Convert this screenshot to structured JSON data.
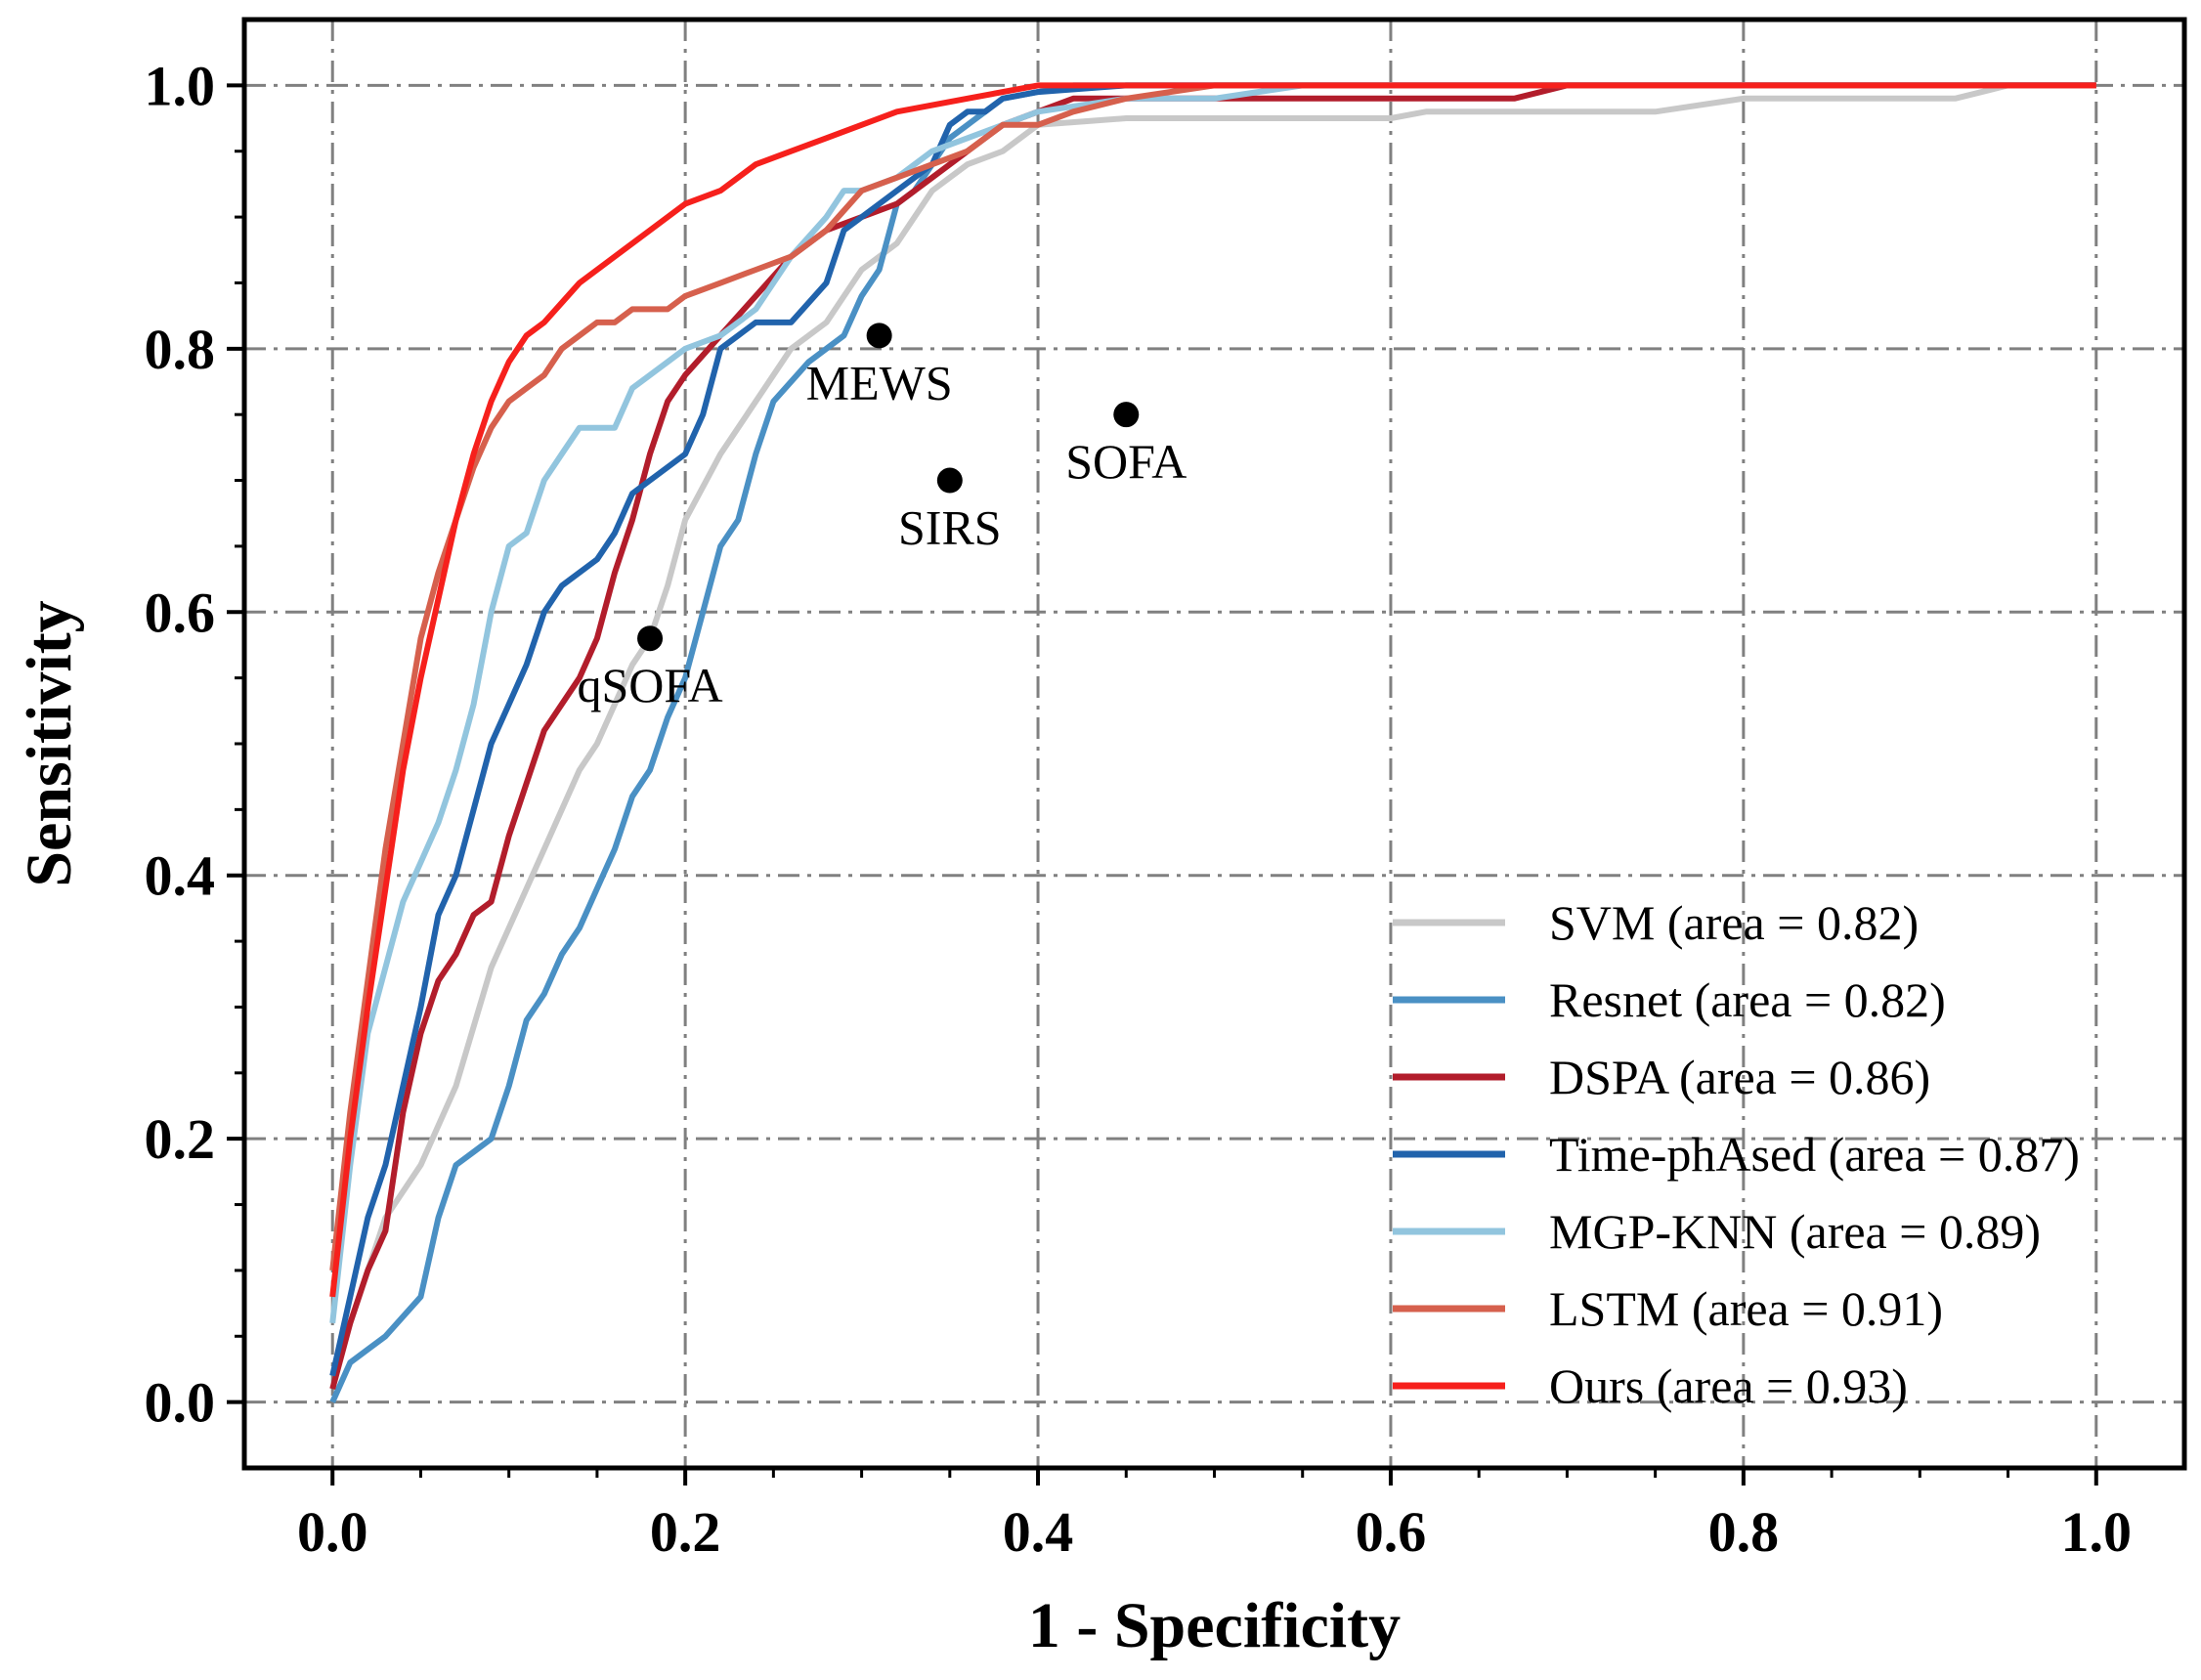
{
  "chart_data": {
    "type": "line",
    "xlabel": "1 - Specificity",
    "ylabel": "Sensitivity",
    "xlim": [
      -0.05,
      1.05
    ],
    "ylim": [
      -0.05,
      1.05
    ],
    "xticks": [
      "0.0",
      "0.2",
      "0.4",
      "0.6",
      "0.8",
      "1.0"
    ],
    "yticks": [
      "0.0",
      "0.2",
      "0.4",
      "0.6",
      "0.8",
      "1.0"
    ],
    "grid": true,
    "legend_position": "lower-right",
    "series": [
      {
        "name": "SVM (area = 0.82)",
        "color": "#c8c8c8",
        "x": [
          0,
          0.01,
          0.02,
          0.03,
          0.05,
          0.07,
          0.09,
          0.12,
          0.14,
          0.15,
          0.16,
          0.17,
          0.18,
          0.19,
          0.2,
          0.22,
          0.24,
          0.26,
          0.28,
          0.3,
          0.32,
          0.34,
          0.36,
          0.38,
          0.4,
          0.45,
          0.6,
          0.62,
          0.75,
          0.8,
          0.92,
          0.95,
          1.0
        ],
        "y": [
          0.02,
          0.06,
          0.1,
          0.14,
          0.18,
          0.24,
          0.33,
          0.42,
          0.48,
          0.5,
          0.53,
          0.56,
          0.58,
          0.62,
          0.67,
          0.72,
          0.76,
          0.8,
          0.82,
          0.86,
          0.88,
          0.92,
          0.94,
          0.95,
          0.97,
          0.975,
          0.975,
          0.98,
          0.98,
          0.99,
          0.99,
          1.0,
          1.0
        ]
      },
      {
        "name": "Resnet (area = 0.82)",
        "color": "#4a90c4",
        "x": [
          0,
          0.01,
          0.03,
          0.05,
          0.06,
          0.07,
          0.08,
          0.09,
          0.1,
          0.11,
          0.12,
          0.13,
          0.14,
          0.15,
          0.16,
          0.17,
          0.18,
          0.19,
          0.2,
          0.21,
          0.22,
          0.23,
          0.24,
          0.25,
          0.27,
          0.29,
          0.3,
          0.31,
          0.32,
          0.33,
          0.34,
          0.35,
          0.36,
          0.37,
          0.38,
          0.4,
          0.42,
          1.0
        ],
        "y": [
          0.0,
          0.03,
          0.05,
          0.08,
          0.14,
          0.18,
          0.19,
          0.2,
          0.24,
          0.29,
          0.31,
          0.34,
          0.36,
          0.39,
          0.42,
          0.46,
          0.48,
          0.52,
          0.55,
          0.6,
          0.65,
          0.67,
          0.72,
          0.76,
          0.79,
          0.81,
          0.84,
          0.86,
          0.91,
          0.92,
          0.94,
          0.96,
          0.97,
          0.98,
          0.99,
          0.995,
          1.0,
          1.0
        ]
      },
      {
        "name": "DSPA (area = 0.86)",
        "color": "#b21d2b",
        "x": [
          0,
          0.01,
          0.02,
          0.03,
          0.04,
          0.05,
          0.06,
          0.07,
          0.08,
          0.09,
          0.1,
          0.11,
          0.12,
          0.13,
          0.14,
          0.15,
          0.16,
          0.17,
          0.18,
          0.19,
          0.2,
          0.22,
          0.24,
          0.26,
          0.28,
          0.3,
          0.32,
          0.34,
          0.36,
          0.38,
          0.4,
          0.42,
          0.5,
          0.6,
          0.67,
          0.7,
          1.0
        ],
        "y": [
          0.01,
          0.06,
          0.1,
          0.13,
          0.22,
          0.28,
          0.32,
          0.34,
          0.37,
          0.38,
          0.43,
          0.47,
          0.51,
          0.53,
          0.55,
          0.58,
          0.63,
          0.67,
          0.72,
          0.76,
          0.78,
          0.81,
          0.84,
          0.87,
          0.89,
          0.9,
          0.91,
          0.93,
          0.95,
          0.97,
          0.98,
          0.99,
          0.99,
          0.99,
          0.99,
          1.0,
          1.0
        ]
      },
      {
        "name": "Time-phAsed (area = 0.87)",
        "color": "#2163ac",
        "x": [
          0,
          0.01,
          0.02,
          0.03,
          0.04,
          0.05,
          0.06,
          0.07,
          0.08,
          0.09,
          0.1,
          0.11,
          0.12,
          0.13,
          0.15,
          0.16,
          0.17,
          0.18,
          0.2,
          0.21,
          0.22,
          0.23,
          0.24,
          0.26,
          0.28,
          0.29,
          0.3,
          0.32,
          0.34,
          0.35,
          0.36,
          0.37,
          0.38,
          0.4,
          0.45,
          0.6,
          1.0
        ],
        "y": [
          0.02,
          0.08,
          0.14,
          0.18,
          0.24,
          0.3,
          0.37,
          0.4,
          0.45,
          0.5,
          0.53,
          0.56,
          0.6,
          0.62,
          0.64,
          0.66,
          0.69,
          0.7,
          0.72,
          0.75,
          0.8,
          0.81,
          0.82,
          0.82,
          0.85,
          0.89,
          0.9,
          0.92,
          0.94,
          0.97,
          0.98,
          0.98,
          0.99,
          0.995,
          1.0,
          1.0,
          1.0
        ]
      },
      {
        "name": "MGP-KNN (area = 0.89)",
        "color": "#92c5de",
        "x": [
          0,
          0.01,
          0.02,
          0.03,
          0.04,
          0.05,
          0.06,
          0.07,
          0.08,
          0.09,
          0.1,
          0.11,
          0.12,
          0.13,
          0.14,
          0.16,
          0.17,
          0.18,
          0.19,
          0.2,
          0.22,
          0.24,
          0.26,
          0.28,
          0.29,
          0.3,
          0.32,
          0.34,
          0.36,
          0.38,
          0.4,
          0.45,
          0.5,
          0.55,
          1.0
        ],
        "y": [
          0.06,
          0.18,
          0.28,
          0.33,
          0.38,
          0.41,
          0.44,
          0.48,
          0.53,
          0.6,
          0.65,
          0.66,
          0.7,
          0.72,
          0.74,
          0.74,
          0.77,
          0.78,
          0.79,
          0.8,
          0.81,
          0.83,
          0.87,
          0.9,
          0.92,
          0.92,
          0.93,
          0.95,
          0.96,
          0.97,
          0.98,
          0.99,
          0.99,
          1.0,
          1.0
        ]
      },
      {
        "name": "LSTM (area = 0.91)",
        "color": "#d6604d",
        "x": [
          0,
          0.01,
          0.02,
          0.03,
          0.04,
          0.05,
          0.06,
          0.07,
          0.08,
          0.09,
          0.1,
          0.11,
          0.12,
          0.13,
          0.14,
          0.15,
          0.16,
          0.17,
          0.18,
          0.19,
          0.2,
          0.22,
          0.24,
          0.26,
          0.28,
          0.3,
          0.32,
          0.34,
          0.36,
          0.38,
          0.4,
          0.42,
          0.45,
          0.5,
          1.0
        ],
        "y": [
          0.1,
          0.22,
          0.32,
          0.42,
          0.5,
          0.58,
          0.63,
          0.67,
          0.71,
          0.74,
          0.76,
          0.77,
          0.78,
          0.8,
          0.81,
          0.82,
          0.82,
          0.83,
          0.83,
          0.83,
          0.84,
          0.85,
          0.86,
          0.87,
          0.89,
          0.92,
          0.93,
          0.94,
          0.95,
          0.97,
          0.97,
          0.98,
          0.99,
          1.0,
          1.0
        ]
      },
      {
        "name": "Ours (area = 0.93)",
        "color": "#f6201c",
        "x": [
          0,
          0.01,
          0.02,
          0.03,
          0.04,
          0.05,
          0.06,
          0.07,
          0.08,
          0.09,
          0.1,
          0.11,
          0.12,
          0.14,
          0.16,
          0.18,
          0.2,
          0.22,
          0.24,
          0.26,
          0.28,
          0.3,
          0.32,
          0.34,
          0.36,
          0.38,
          0.4,
          0.45,
          0.5,
          1.0
        ],
        "y": [
          0.08,
          0.2,
          0.3,
          0.39,
          0.48,
          0.55,
          0.61,
          0.67,
          0.72,
          0.76,
          0.79,
          0.81,
          0.82,
          0.85,
          0.87,
          0.89,
          0.91,
          0.92,
          0.94,
          0.95,
          0.96,
          0.97,
          0.98,
          0.985,
          0.99,
          0.995,
          1.0,
          1.0,
          1.0,
          1.0
        ]
      }
    ],
    "points": [
      {
        "label": "MEWS",
        "x": 0.31,
        "y": 0.81
      },
      {
        "label": "SOFA",
        "x": 0.45,
        "y": 0.75
      },
      {
        "label": "SIRS",
        "x": 0.35,
        "y": 0.7
      },
      {
        "label": "qSOFA",
        "x": 0.18,
        "y": 0.58
      }
    ]
  }
}
